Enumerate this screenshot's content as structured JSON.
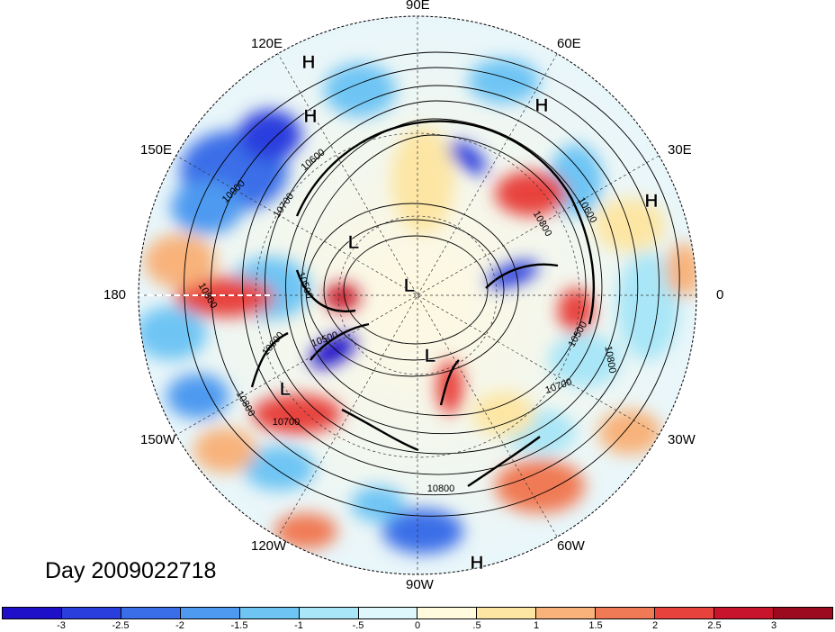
{
  "map": {
    "projection": "north-polar-stereographic",
    "longitude_labels": [
      {
        "text": "90E",
        "lon": 90
      },
      {
        "text": "60E",
        "lon": 60
      },
      {
        "text": "30E",
        "lon": 30
      },
      {
        "text": "0",
        "lon": 0
      },
      {
        "text": "30W",
        "lon": -30
      },
      {
        "text": "60W",
        "lon": -60
      },
      {
        "text": "90W",
        "lon": -90
      },
      {
        "text": "120W",
        "lon": -120
      },
      {
        "text": "150W",
        "lon": -150
      },
      {
        "text": "180",
        "lon": 180
      },
      {
        "text": "150E",
        "lon": 150
      },
      {
        "text": "120E",
        "lon": 120
      }
    ],
    "contour_interval": 100,
    "contour_labels": [
      "10900",
      "10800",
      "10700",
      "10600",
      "10500",
      "10500",
      "10600",
      "10800",
      "10700",
      "10500",
      "10600",
      "10800",
      "10700",
      "10800",
      "10800"
    ],
    "pressure_centers": [
      {
        "type": "H",
        "label": "H"
      },
      {
        "type": "H",
        "label": "H"
      },
      {
        "type": "H",
        "label": "H"
      },
      {
        "type": "H",
        "label": "H"
      },
      {
        "type": "H",
        "label": "H"
      },
      {
        "type": "L",
        "label": "L"
      },
      {
        "type": "L",
        "label": "L"
      },
      {
        "type": "L",
        "label": "L"
      },
      {
        "type": "L",
        "label": "L"
      }
    ],
    "date_label": "Day 2009022718"
  },
  "colorbar": {
    "ticks": [
      "-3",
      "-2.5",
      "-2",
      "-1.5",
      "-1",
      "-.5",
      "0",
      ".5",
      "1",
      "1.5",
      "2",
      "2.5",
      "3"
    ],
    "colors": [
      "#1e10c8",
      "#2a3ede",
      "#3a6ee8",
      "#4d9af0",
      "#6ec5f4",
      "#a9e6f7",
      "#def7fc",
      "#fffbdc",
      "#fde6a4",
      "#f8b27a",
      "#f07a55",
      "#e8423c",
      "#c8142c",
      "#9b0a1e"
    ]
  }
}
